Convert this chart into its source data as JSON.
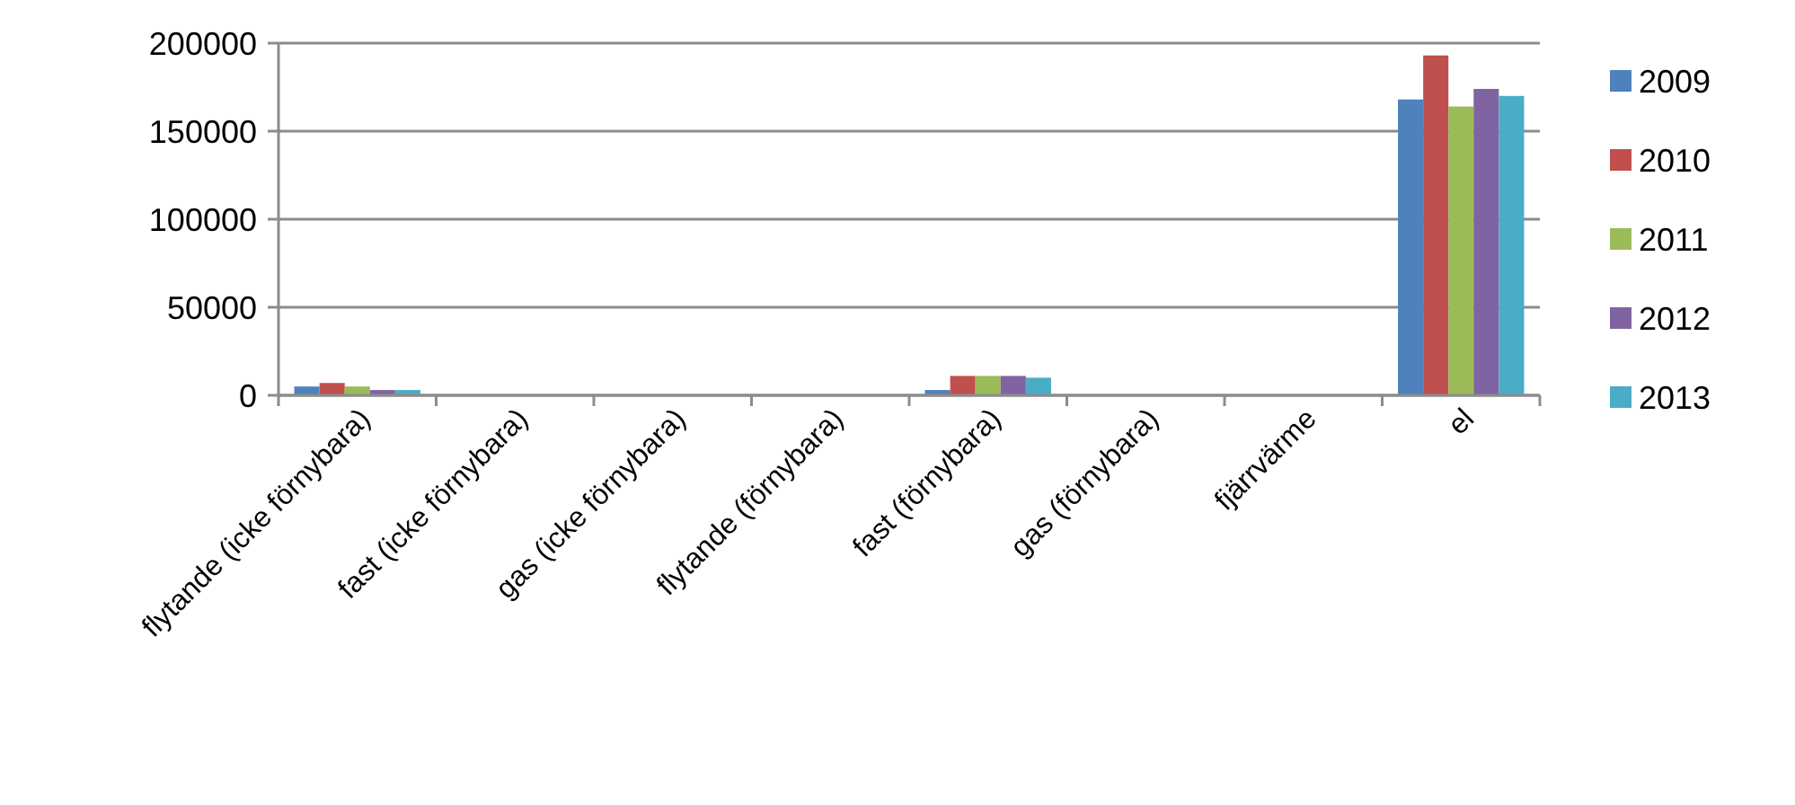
{
  "chart_data": {
    "type": "bar",
    "categories": [
      "flytande (icke förnybara)",
      "fast (icke förnybara)",
      "gas (icke förnybara)",
      "flytande (förnybara)",
      "fast (förnybara)",
      "gas (förnybara)",
      "fjärrvärme",
      "el"
    ],
    "series": [
      {
        "name": "2009",
        "color": "#4f81bd",
        "values": [
          5000,
          0,
          0,
          0,
          3000,
          0,
          0,
          168000
        ]
      },
      {
        "name": "2010",
        "color": "#c0504d",
        "values": [
          7000,
          0,
          0,
          0,
          11000,
          0,
          0,
          193000
        ]
      },
      {
        "name": "2011",
        "color": "#9bbb59",
        "values": [
          5000,
          0,
          0,
          0,
          11000,
          0,
          0,
          164000
        ]
      },
      {
        "name": "2012",
        "color": "#8064a2",
        "values": [
          3000,
          0,
          0,
          0,
          11000,
          0,
          0,
          174000
        ]
      },
      {
        "name": "2013",
        "color": "#4bacc6",
        "values": [
          3000,
          0,
          0,
          0,
          10000,
          0,
          0,
          170000
        ]
      }
    ],
    "ylim": [
      0,
      200000
    ],
    "yticks": [
      0,
      50000,
      100000,
      150000,
      200000
    ],
    "grid": "y",
    "legend": "right"
  }
}
